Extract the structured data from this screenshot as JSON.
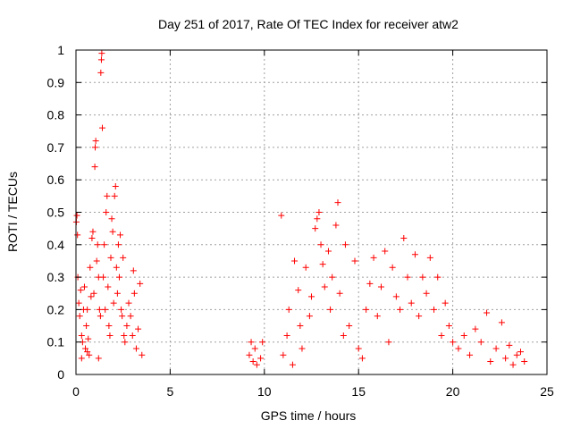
{
  "chart_data": {
    "type": "scatter",
    "title": "Day 251 of 2017, Rate Of TEC Index for receiver atw2",
    "xlabel": "GPS time / hours",
    "ylabel": "ROTI / TECUs",
    "xlim": [
      0,
      25
    ],
    "ylim": [
      0,
      1
    ],
    "xticks": [
      0,
      5,
      10,
      15,
      20,
      25
    ],
    "xtick_labels": [
      "0",
      "5",
      "10",
      "15",
      "20",
      "25"
    ],
    "yticks": [
      0,
      0.1,
      0.2,
      0.3,
      0.4,
      0.5,
      0.6,
      0.7,
      0.8,
      0.9,
      1
    ],
    "ytick_labels": [
      "0",
      "0.1",
      "0.2",
      "0.3",
      "0.4",
      "0.5",
      "0.6",
      "0.7",
      "0.8",
      "0.9",
      "1"
    ],
    "grid": true,
    "marker": "plus",
    "color": "#ff0000",
    "series": [
      {
        "name": "ROTI",
        "points": [
          [
            0.02,
            0.47
          ],
          [
            0.05,
            0.49
          ],
          [
            0.08,
            0.43
          ],
          [
            0.1,
            0.3
          ],
          [
            0.15,
            0.22
          ],
          [
            0.2,
            0.18
          ],
          [
            0.25,
            0.26
          ],
          [
            0.3,
            0.12
          ],
          [
            0.35,
            0.1
          ],
          [
            0.4,
            0.2
          ],
          [
            0.45,
            0.27
          ],
          [
            0.5,
            0.08
          ],
          [
            0.55,
            0.15
          ],
          [
            0.6,
            0.2
          ],
          [
            0.65,
            0.11
          ],
          [
            0.7,
            0.06
          ],
          [
            0.75,
            0.33
          ],
          [
            0.8,
            0.24
          ],
          [
            0.85,
            0.42
          ],
          [
            0.9,
            0.44
          ],
          [
            0.95,
            0.25
          ],
          [
            1.0,
            0.64
          ],
          [
            1.02,
            0.7
          ],
          [
            1.05,
            0.72
          ],
          [
            1.1,
            0.35
          ],
          [
            1.15,
            0.4
          ],
          [
            1.2,
            0.3
          ],
          [
            1.25,
            0.2
          ],
          [
            1.3,
            0.18
          ],
          [
            1.32,
            0.93
          ],
          [
            1.35,
            0.97
          ],
          [
            1.37,
            0.99
          ],
          [
            1.4,
            0.76
          ],
          [
            1.45,
            0.3
          ],
          [
            1.5,
            0.4
          ],
          [
            1.55,
            0.2
          ],
          [
            1.6,
            0.5
          ],
          [
            1.65,
            0.55
          ],
          [
            1.7,
            0.27
          ],
          [
            1.75,
            0.15
          ],
          [
            1.8,
            0.12
          ],
          [
            1.85,
            0.36
          ],
          [
            1.9,
            0.48
          ],
          [
            1.95,
            0.44
          ],
          [
            2.0,
            0.22
          ],
          [
            2.05,
            0.55
          ],
          [
            2.1,
            0.58
          ],
          [
            2.15,
            0.33
          ],
          [
            2.2,
            0.25
          ],
          [
            2.25,
            0.4
          ],
          [
            2.3,
            0.3
          ],
          [
            2.35,
            0.43
          ],
          [
            2.4,
            0.2
          ],
          [
            2.45,
            0.18
          ],
          [
            2.5,
            0.36
          ],
          [
            2.55,
            0.12
          ],
          [
            2.6,
            0.1
          ],
          [
            2.7,
            0.15
          ],
          [
            2.8,
            0.22
          ],
          [
            2.9,
            0.18
          ],
          [
            3.0,
            0.12
          ],
          [
            3.05,
            0.32
          ],
          [
            3.1,
            0.25
          ],
          [
            3.2,
            0.08
          ],
          [
            3.3,
            0.14
          ],
          [
            3.4,
            0.28
          ],
          [
            3.5,
            0.06
          ],
          [
            0.3,
            0.05
          ],
          [
            0.6,
            0.07
          ],
          [
            1.2,
            0.05
          ],
          [
            9.2,
            0.06
          ],
          [
            9.3,
            0.1
          ],
          [
            9.4,
            0.04
          ],
          [
            9.5,
            0.08
          ],
          [
            9.6,
            0.03
          ],
          [
            9.8,
            0.05
          ],
          [
            9.9,
            0.1
          ],
          [
            10.9,
            0.49
          ],
          [
            11.0,
            0.06
          ],
          [
            11.2,
            0.12
          ],
          [
            11.3,
            0.2
          ],
          [
            11.5,
            0.03
          ],
          [
            11.6,
            0.35
          ],
          [
            11.8,
            0.26
          ],
          [
            11.9,
            0.15
          ],
          [
            12.0,
            0.08
          ],
          [
            12.2,
            0.33
          ],
          [
            12.4,
            0.18
          ],
          [
            12.5,
            0.24
          ],
          [
            12.7,
            0.45
          ],
          [
            12.8,
            0.48
          ],
          [
            12.9,
            0.5
          ],
          [
            13.0,
            0.4
          ],
          [
            13.1,
            0.34
          ],
          [
            13.2,
            0.27
          ],
          [
            13.4,
            0.38
          ],
          [
            13.5,
            0.2
          ],
          [
            13.6,
            0.3
          ],
          [
            13.8,
            0.46
          ],
          [
            13.9,
            0.53
          ],
          [
            14.0,
            0.25
          ],
          [
            14.2,
            0.12
          ],
          [
            14.3,
            0.4
          ],
          [
            14.5,
            0.15
          ],
          [
            14.8,
            0.35
          ],
          [
            15.0,
            0.08
          ],
          [
            15.2,
            0.05
          ],
          [
            15.4,
            0.2
          ],
          [
            15.6,
            0.28
          ],
          [
            15.8,
            0.36
          ],
          [
            16.0,
            0.18
          ],
          [
            16.2,
            0.27
          ],
          [
            16.4,
            0.38
          ],
          [
            16.6,
            0.1
          ],
          [
            16.8,
            0.33
          ],
          [
            17.0,
            0.24
          ],
          [
            17.2,
            0.2
          ],
          [
            17.4,
            0.42
          ],
          [
            17.6,
            0.3
          ],
          [
            17.8,
            0.22
          ],
          [
            18.0,
            0.37
          ],
          [
            18.2,
            0.18
          ],
          [
            18.4,
            0.3
          ],
          [
            18.6,
            0.25
          ],
          [
            18.8,
            0.36
          ],
          [
            19.0,
            0.2
          ],
          [
            19.2,
            0.3
          ],
          [
            19.4,
            0.12
          ],
          [
            19.6,
            0.22
          ],
          [
            19.8,
            0.15
          ],
          [
            20.0,
            0.1
          ],
          [
            20.3,
            0.08
          ],
          [
            20.6,
            0.12
          ],
          [
            20.9,
            0.06
          ],
          [
            21.2,
            0.14
          ],
          [
            21.5,
            0.1
          ],
          [
            21.8,
            0.19
          ],
          [
            22.0,
            0.04
          ],
          [
            22.3,
            0.08
          ],
          [
            22.6,
            0.16
          ],
          [
            22.8,
            0.05
          ],
          [
            23.0,
            0.09
          ],
          [
            23.2,
            0.03
          ],
          [
            23.4,
            0.06
          ],
          [
            23.6,
            0.07
          ],
          [
            23.8,
            0.04
          ]
        ]
      }
    ]
  }
}
